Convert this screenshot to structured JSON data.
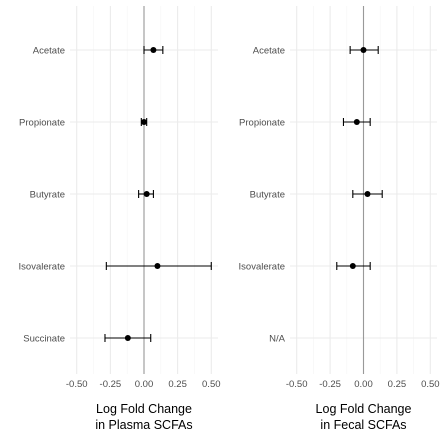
{
  "colors": {
    "grid_major": "#ebebeb",
    "grid_minor": "#f5f5f5",
    "zero_line": "#999999",
    "point": "#000000",
    "errorbar": "#000000"
  },
  "chart_data": [
    {
      "type": "scatter",
      "subtype": "forest",
      "xlabel_line1": "Log Fold Change",
      "xlabel_line2": "in Plasma SCFAs",
      "xlim": [
        -0.55,
        0.55
      ],
      "xticks": [
        -0.5,
        -0.25,
        0.0,
        0.25,
        0.5
      ],
      "xtick_labels": [
        "-0.50",
        "-0.25",
        "0.00",
        "0.25",
        "0.50"
      ],
      "reference_line": 0,
      "categories": [
        "Acetate",
        "Propionate",
        "Butyrate",
        "Isovalerate",
        "Succinate"
      ],
      "estimates": [
        0.07,
        0.0,
        0.02,
        0.1,
        -0.12
      ],
      "lower": [
        0.0,
        -0.02,
        -0.04,
        -0.28,
        -0.29
      ],
      "upper": [
        0.14,
        0.02,
        0.07,
        0.5,
        0.05
      ],
      "grid": true
    },
    {
      "type": "scatter",
      "subtype": "forest",
      "xlabel_line1": "Log Fold Change",
      "xlabel_line2": "in Fecal SCFAs",
      "xlim": [
        -0.55,
        0.55
      ],
      "xticks": [
        -0.5,
        -0.25,
        0.0,
        0.25,
        0.5
      ],
      "xtick_labels": [
        "-0.50",
        "-0.25",
        "0.00",
        "0.25",
        "0.50"
      ],
      "reference_line": 0,
      "categories": [
        "Acetate",
        "Propionate",
        "Butyrate",
        "Isovalerate",
        "N/A"
      ],
      "estimates": [
        0.0,
        -0.05,
        0.03,
        -0.08,
        null
      ],
      "lower": [
        -0.1,
        -0.15,
        -0.08,
        -0.2,
        null
      ],
      "upper": [
        0.11,
        0.05,
        0.14,
        0.05,
        null
      ],
      "grid": true
    }
  ]
}
